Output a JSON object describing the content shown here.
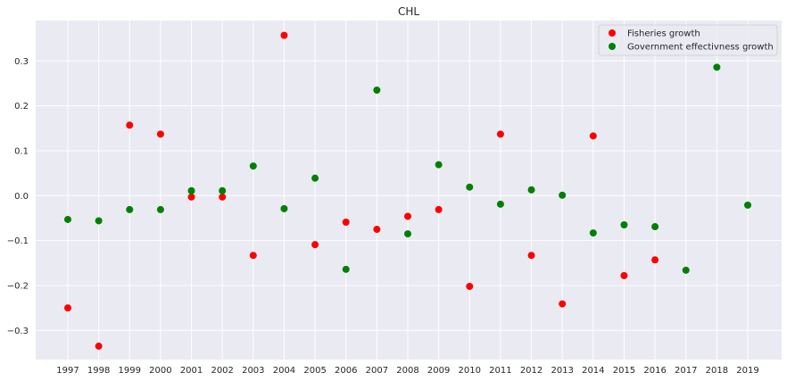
{
  "chart_data": {
    "type": "scatter",
    "title": "CHL",
    "xlabel": "",
    "ylabel": "",
    "x": [
      "1997",
      "1998",
      "1999",
      "2000",
      "2001",
      "2002",
      "2003",
      "2004",
      "2005",
      "2006",
      "2007",
      "2008",
      "2009",
      "2010",
      "2011",
      "2012",
      "2013",
      "2014",
      "2015",
      "2016",
      "2017",
      "2018",
      "2019"
    ],
    "ylim": [
      -0.365,
      0.39
    ],
    "yticks": [
      -0.3,
      -0.2,
      -0.1,
      0.0,
      0.1,
      0.2,
      0.3
    ],
    "ytick_labels": [
      "−0.3",
      "−0.2",
      "−0.1",
      "0.0",
      "0.1",
      "0.2",
      "0.3"
    ],
    "grid": true,
    "legend_position": "top-right",
    "series": [
      {
        "name": "Fisheries growth",
        "color": "#ff0000",
        "points": [
          {
            "x": "1997",
            "y": -0.25
          },
          {
            "x": "1998",
            "y": -0.335
          },
          {
            "x": "1999",
            "y": 0.157
          },
          {
            "x": "2000",
            "y": 0.137
          },
          {
            "x": "2001",
            "y": -0.003
          },
          {
            "x": "2002",
            "y": -0.003
          },
          {
            "x": "2003",
            "y": -0.133
          },
          {
            "x": "2004",
            "y": 0.357
          },
          {
            "x": "2005",
            "y": -0.109
          },
          {
            "x": "2006",
            "y": -0.059
          },
          {
            "x": "2007",
            "y": -0.075
          },
          {
            "x": "2008",
            "y": -0.046
          },
          {
            "x": "2009",
            "y": -0.031
          },
          {
            "x": "2010",
            "y": -0.202
          },
          {
            "x": "2011",
            "y": 0.137
          },
          {
            "x": "2012",
            "y": -0.133
          },
          {
            "x": "2013",
            "y": -0.241
          },
          {
            "x": "2014",
            "y": 0.133
          },
          {
            "x": "2015",
            "y": -0.178
          },
          {
            "x": "2016",
            "y": -0.143
          }
        ]
      },
      {
        "name": "Government effectivness growth",
        "color": "#008000",
        "points": [
          {
            "x": "1997",
            "y": -0.053
          },
          {
            "x": "1998",
            "y": -0.056
          },
          {
            "x": "1999",
            "y": -0.031
          },
          {
            "x": "2000",
            "y": -0.031
          },
          {
            "x": "2001",
            "y": 0.011
          },
          {
            "x": "2002",
            "y": 0.011
          },
          {
            "x": "2003",
            "y": 0.066
          },
          {
            "x": "2004",
            "y": -0.029
          },
          {
            "x": "2005",
            "y": 0.039
          },
          {
            "x": "2006",
            "y": -0.164
          },
          {
            "x": "2007",
            "y": 0.235
          },
          {
            "x": "2008",
            "y": -0.085
          },
          {
            "x": "2009",
            "y": 0.069
          },
          {
            "x": "2010",
            "y": 0.019
          },
          {
            "x": "2011",
            "y": -0.019
          },
          {
            "x": "2012",
            "y": 0.013
          },
          {
            "x": "2013",
            "y": 0.001
          },
          {
            "x": "2014",
            "y": -0.083
          },
          {
            "x": "2015",
            "y": -0.065
          },
          {
            "x": "2016",
            "y": -0.069
          },
          {
            "x": "2017",
            "y": -0.166
          },
          {
            "x": "2018",
            "y": 0.286
          },
          {
            "x": "2019",
            "y": -0.021
          }
        ]
      }
    ]
  }
}
